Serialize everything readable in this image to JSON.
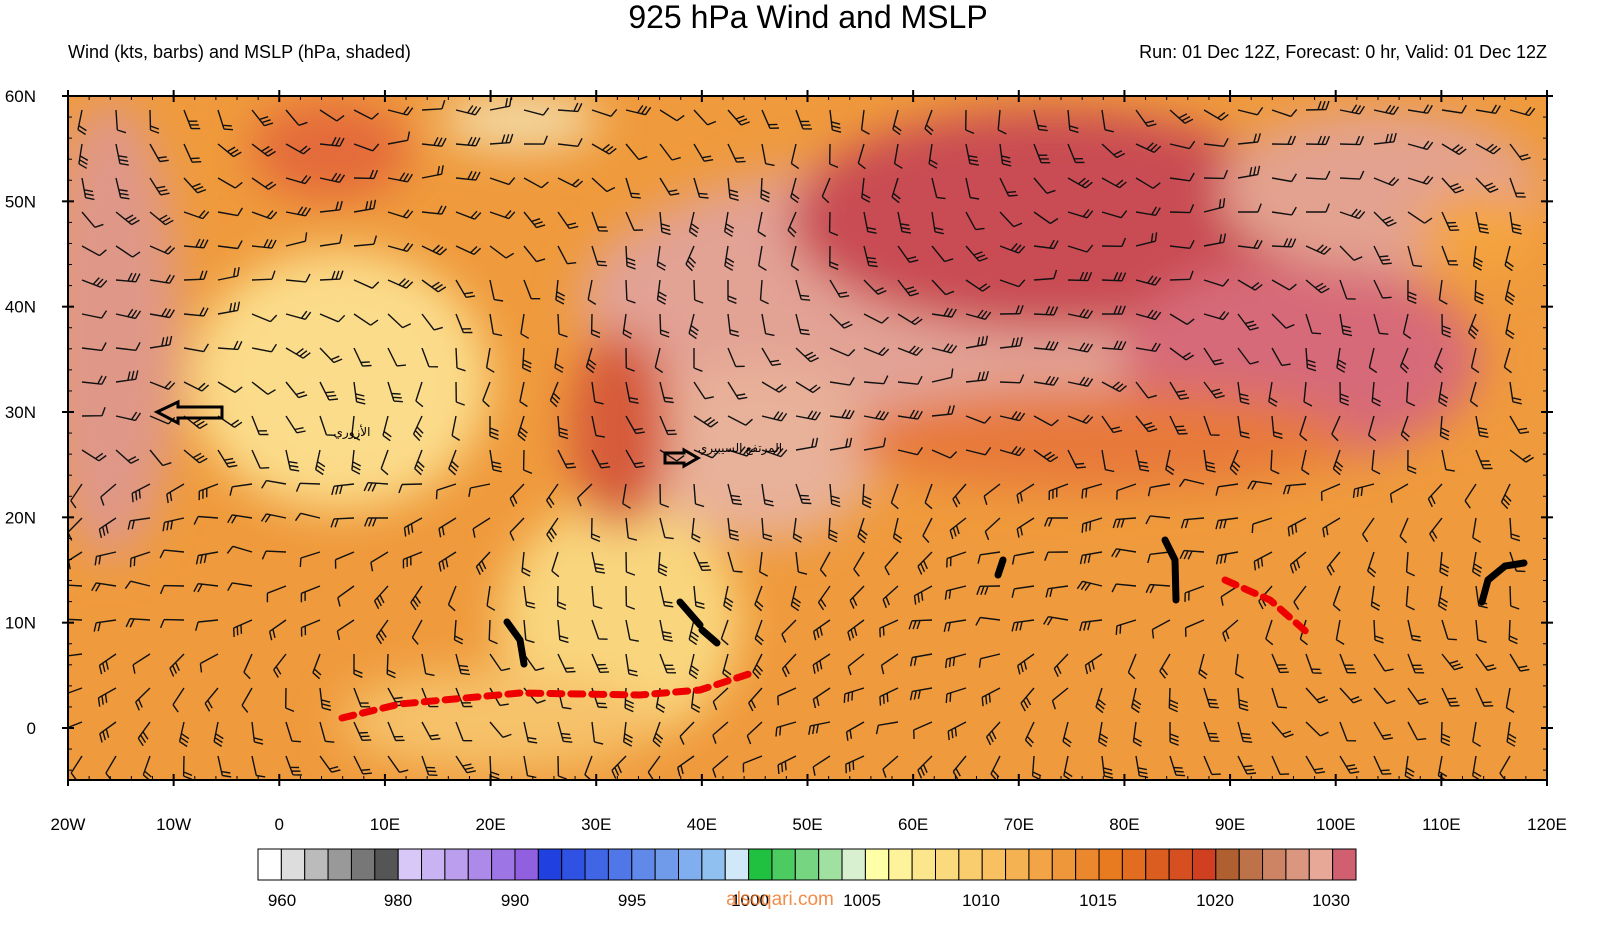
{
  "header": {
    "title": "925 hPa Wind and MSLP",
    "subtitle_left": "Wind (kts, barbs) and MSLP (hPa, shaded)",
    "subtitle_right": "Run: 01 Dec 12Z, Forecast: 0 hr, Valid: 01 Dec 12Z"
  },
  "map": {
    "lat_labels": [
      "60N",
      "50N",
      "40N",
      "30N",
      "20N",
      "10N",
      "0"
    ],
    "lon_labels": [
      "20W",
      "10W",
      "0",
      "10E",
      "20E",
      "30E",
      "40E",
      "50E",
      "60E",
      "70E",
      "80E",
      "90E",
      "100E",
      "110E",
      "120E"
    ],
    "annotations": [
      "الأزوري",
      "المرتفع السيبيري"
    ]
  },
  "colorbar": {
    "labels": [
      "960",
      "980",
      "990",
      "995",
      "1000",
      "1005",
      "1010",
      "1015",
      "1020",
      "1030"
    ]
  },
  "watermark": "alsoqari.com"
}
